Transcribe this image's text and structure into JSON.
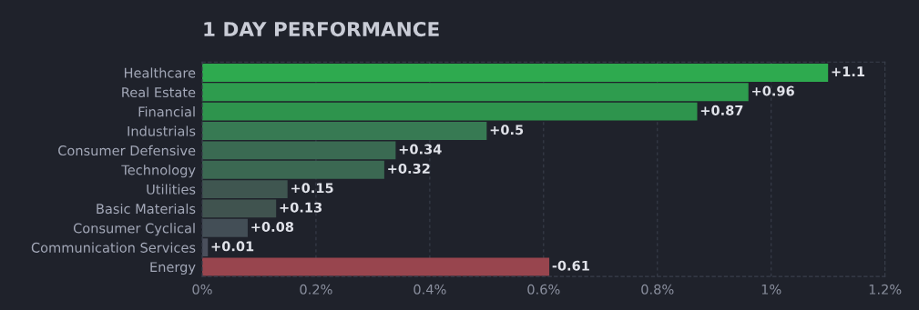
{
  "chart_data": {
    "type": "bar",
    "orientation": "horizontal",
    "title": "1 DAY PERFORMANCE",
    "categories": [
      "Healthcare",
      "Real Estate",
      "Financial",
      "Industrials",
      "Consumer Defensive",
      "Technology",
      "Utilities",
      "Basic Materials",
      "Consumer Cyclical",
      "Communication Services",
      "Energy"
    ],
    "values": [
      1.1,
      0.96,
      0.87,
      0.5,
      0.34,
      0.32,
      0.15,
      0.13,
      0.08,
      0.01,
      -0.61
    ],
    "base": [
      0,
      0,
      0,
      0,
      0,
      0,
      0,
      0,
      0,
      0,
      0.61
    ],
    "value_labels": [
      "+1.1",
      "+0.96",
      "+0.87",
      "+0.5",
      "+0.34",
      "+0.32",
      "+0.15",
      "+0.13",
      "+0.08",
      "+0.01",
      "-0.61"
    ],
    "colors": [
      "#2eaa4f",
      "#2e9c4e",
      "#2e944d",
      "#377a53",
      "#3a6a52",
      "#3b6852",
      "#3f5650",
      "#40534f",
      "#434e56",
      "#4a4f5c",
      "#98454e"
    ],
    "xlim": [
      0,
      1.2
    ],
    "xticks": [
      {
        "value": 0,
        "label": "0%"
      },
      {
        "value": 0.2,
        "label": "0.2%"
      },
      {
        "value": 0.4,
        "label": "0.4%"
      },
      {
        "value": 0.6,
        "label": "0.6%"
      },
      {
        "value": 0.8,
        "label": "0.8%"
      },
      {
        "value": 1,
        "label": "1%"
      },
      {
        "value": 1.2,
        "label": "1.2%"
      }
    ],
    "grid": "x"
  }
}
